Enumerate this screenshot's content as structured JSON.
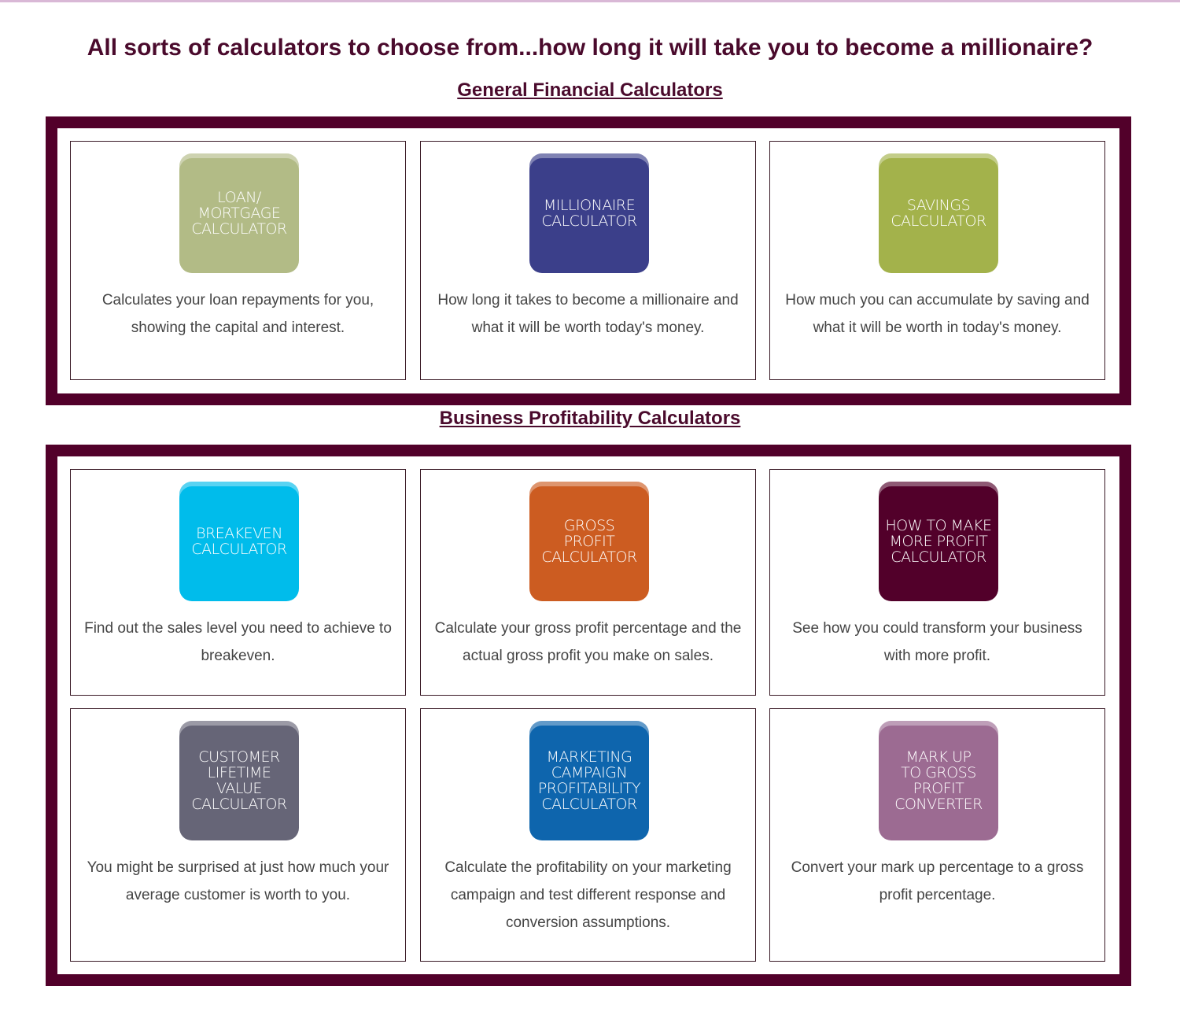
{
  "title": "All sorts of calculators to choose from...how long it will take you to become a millionaire?",
  "sections": [
    {
      "heading": "General Financial Calculators",
      "cards": [
        {
          "label": "LOAN/\nMORTGAGE\nCALCULATOR",
          "desc": "Calculates your loan repayments for you, showing the capital and interest.",
          "color": "#b2bb86"
        },
        {
          "label": "MILLIONAIRE\nCALCULATOR",
          "desc": "How long it takes to become a millionaire and what it will be worth today's money.",
          "color": "#3b3f8a"
        },
        {
          "label": "SAVINGS\nCALCULATOR",
          "desc": "How much you can accumulate by saving and what it will be worth in today's money.",
          "color": "#a3b24b"
        }
      ]
    },
    {
      "heading": "Business Profitability Calculators",
      "cards": [
        {
          "label": "BREAKEVEN\nCALCULATOR",
          "desc": "Find out the sales level you need to achieve to breakeven.",
          "color": "#00bceb"
        },
        {
          "label": "GROSS\nPROFIT\nCALCULATOR",
          "desc": "Calculate your gross profit percentage and the actual gross profit you make on sales.",
          "color": "#cc5c21"
        },
        {
          "label": "HOW TO MAKE\nMORE PROFIT\nCALCULATOR",
          "desc": "See how you could transform your business with more profit.",
          "color": "#52002a"
        },
        {
          "label": "CUSTOMER\nLIFETIME\nVALUE\nCALCULATOR",
          "desc": "You might be surprised at just how much your average customer is worth to you.",
          "color": "#666577"
        },
        {
          "label": "MARKETING\nCAMPAIGN\nPROFITABILITY\nCALCULATOR",
          "desc": "Calculate the profitability on your marketing campaign and test different response and conversion assumptions.",
          "color": "#0e65ad"
        },
        {
          "label": "MARK UP\nTO GROSS\nPROFIT\nCONVERTER",
          "desc": "Convert your mark up percentage to a gross profit percentage.",
          "color": "#9c6b92"
        }
      ]
    }
  ]
}
